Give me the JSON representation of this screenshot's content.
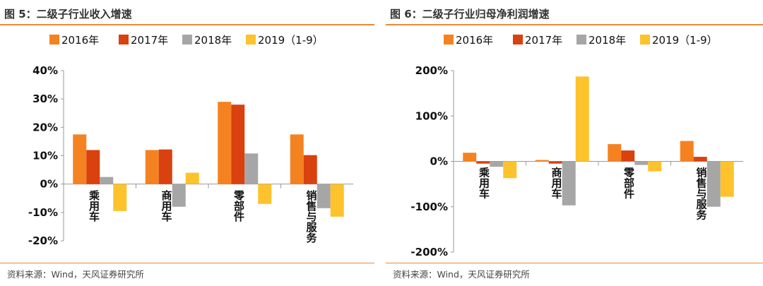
{
  "legend_colors": [
    "#f58220",
    "#d9410f",
    "#a6a6a6",
    "#fdc22c"
  ],
  "panels": [
    {
      "title": "图 5：二级子行业收入增速",
      "source": "资料来源：Wind，天风证券研究所",
      "chart_data": {
        "type": "bar",
        "categories": [
          "乘用车",
          "商用车",
          "零部件",
          "销售与服务"
        ],
        "series": [
          {
            "name": "2016年",
            "values": [
              17.5,
              12.0,
              29.0,
              17.5
            ]
          },
          {
            "name": "2017年",
            "values": [
              12.0,
              12.2,
              28.0,
              10.2
            ]
          },
          {
            "name": "2018年",
            "values": [
              2.5,
              -8.0,
              10.8,
              -8.5
            ]
          },
          {
            "name": "2019（1-9）",
            "values": [
              -9.5,
              4.0,
              -7.0,
              -11.5
            ]
          }
        ],
        "ylim": [
          -20,
          40
        ],
        "yticks": [
          "40%",
          "30%",
          "20%",
          "10%",
          "0%",
          "-10%",
          "-20%"
        ],
        "ytick_values": [
          40,
          30,
          20,
          10,
          0,
          -10,
          -20
        ]
      }
    },
    {
      "title": "图 6：二级子行业归母净利润增速",
      "source": "资料来源：Wind，天风证券研究所",
      "chart_data": {
        "type": "bar",
        "categories": [
          "乘用车",
          "商用车",
          "零部件",
          "销售与服务"
        ],
        "series": [
          {
            "name": "2016年",
            "values": [
              19,
              3,
              38,
              45
            ]
          },
          {
            "name": "2017年",
            "values": [
              -5,
              -5,
              24,
              10
            ]
          },
          {
            "name": "2018年",
            "values": [
              -12,
              -97,
              -8,
              -100
            ]
          },
          {
            "name": "2019（1-9）",
            "values": [
              -37,
              187,
              -22,
              -78
            ]
          }
        ],
        "ylim": [
          -200,
          200
        ],
        "yticks": [
          "200%",
          "100%",
          "0%",
          "-100%",
          "-200%"
        ],
        "ytick_values": [
          200,
          100,
          0,
          -100,
          -200
        ]
      }
    }
  ]
}
